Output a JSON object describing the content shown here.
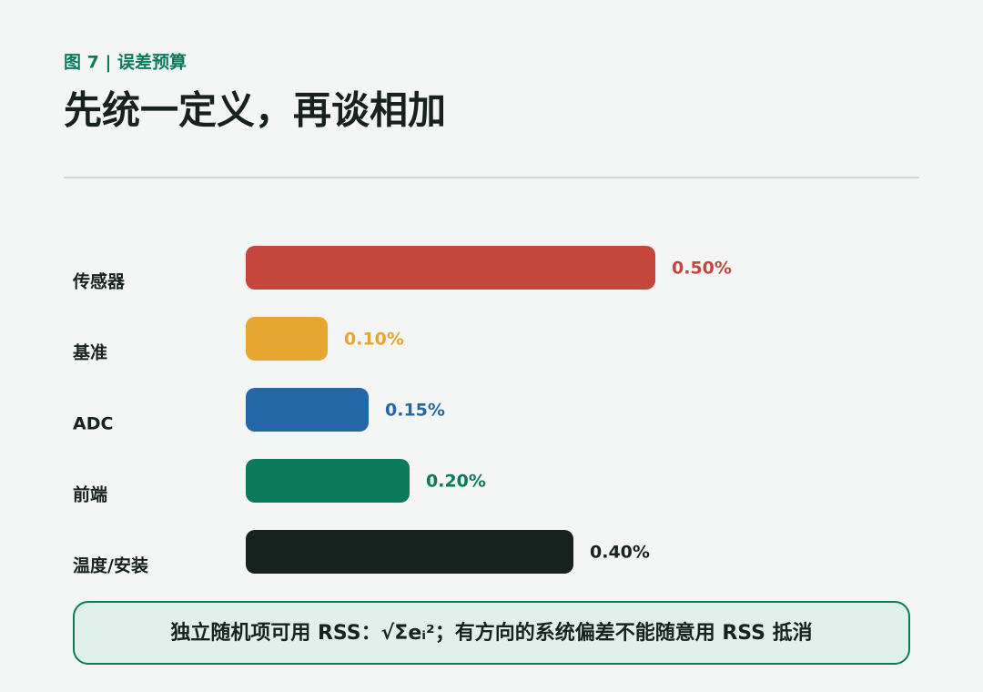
{
  "chart_data": {
    "type": "bar",
    "orientation": "horizontal",
    "kicker": "图 7 | 误差预算",
    "title": "先统一定义，再谈相加",
    "categories": [
      "传感器",
      "基准",
      "ADC",
      "前端",
      "温度/安装"
    ],
    "values": [
      0.5,
      0.1,
      0.15,
      0.2,
      0.4
    ],
    "value_labels": [
      "0.50%",
      "0.10%",
      "0.15%",
      "0.20%",
      "0.40%"
    ],
    "colors": [
      "#c5473b",
      "#e6a630",
      "#2467a8",
      "#0b7a5c",
      "#17221f"
    ],
    "note": "独立随机项可用 RSS：√Σeᵢ²；有方向的系统偏差不能随意用 RSS 抵消"
  }
}
